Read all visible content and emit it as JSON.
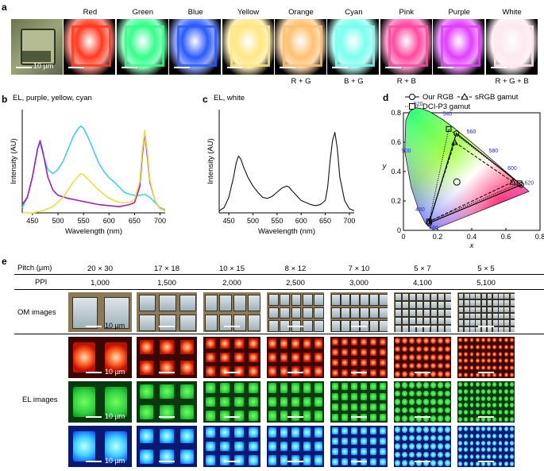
{
  "panel_a": {
    "label": "a",
    "scale_bar": "10 µm",
    "colors": [
      {
        "name": "",
        "combo": "",
        "hex": "#aab48a"
      },
      {
        "name": "Red",
        "combo": "",
        "hex": "#ff3a20"
      },
      {
        "name": "Green",
        "combo": "",
        "hex": "#35ff8a"
      },
      {
        "name": "Blue",
        "combo": "",
        "hex": "#2b5aff"
      },
      {
        "name": "Yellow",
        "combo": "",
        "hex": "#ffe680"
      },
      {
        "name": "Orange",
        "combo": "R + G",
        "hex": "#ffc070"
      },
      {
        "name": "Cyan",
        "combo": "B + G",
        "hex": "#7affee"
      },
      {
        "name": "Pink",
        "combo": "R + B",
        "hex": "#ff4aa0"
      },
      {
        "name": "Purple",
        "combo": "",
        "hex": "#e040ff"
      },
      {
        "name": "White",
        "combo": "R + G + B",
        "hex": "#ffe8f0"
      }
    ]
  },
  "panel_b": {
    "label": "b",
    "title": "EL, purple, yellow, cyan",
    "xlabel": "Wavelength (nm)",
    "ylabel": "Intensity (AU)",
    "xticks": [
      "450",
      "500",
      "550",
      "600",
      "650",
      "700"
    ]
  },
  "panel_c": {
    "label": "c",
    "title": "EL, white",
    "xlabel": "Wavelength (nm)",
    "ylabel": "Intensity (AU)",
    "xticks": [
      "450",
      "500",
      "550",
      "600",
      "650",
      "700"
    ]
  },
  "panel_d": {
    "label": "d",
    "legend": [
      "Our RGB",
      "sRGB gamut",
      "DCI-P3 gamut"
    ],
    "xlabel": "x",
    "ylabel": "y",
    "xticks": [
      "0",
      "0.2",
      "0.4",
      "0.6",
      "0.8"
    ],
    "yticks": [
      "0",
      "0.2",
      "0.4",
      "0.6",
      "0.8"
    ],
    "locus_labels": [
      "520",
      "540",
      "560",
      "580",
      "600",
      "620",
      "500",
      "480",
      "460"
    ]
  },
  "panel_e": {
    "label": "e",
    "pitch_header": "Pitch (µm)",
    "ppi_header": "PPI",
    "pitches": [
      "20 × 30",
      "17 × 18",
      "10 × 15",
      "8 × 12",
      "7 × 10",
      "5 × 7",
      "5 × 5"
    ],
    "ppis": [
      "1,000",
      "1,500",
      "2,000",
      "2,500",
      "3,000",
      "4,100",
      "5,100"
    ],
    "row_labels": [
      "OM images",
      "EL images"
    ],
    "scale_bar": "10 µm"
  },
  "chart_data": [
    {
      "type": "line",
      "title": "EL, purple, yellow, cyan",
      "xlabel": "Wavelength (nm)",
      "ylabel": "Intensity (AU)",
      "xlim": [
        430,
        710
      ],
      "series": [
        {
          "name": "",
          "color": "#3fd2e0",
          "x": [
            430,
            440,
            450,
            460,
            465,
            470,
            480,
            490,
            500,
            510,
            520,
            530,
            540,
            545,
            550,
            560,
            570,
            580,
            590,
            600,
            610,
            620,
            630,
            640,
            650,
            660,
            670,
            680,
            690,
            700,
            710
          ],
          "y": [
            0.05,
            0.15,
            0.35,
            0.62,
            0.68,
            0.58,
            0.42,
            0.38,
            0.42,
            0.5,
            0.62,
            0.74,
            0.82,
            0.84,
            0.82,
            0.72,
            0.6,
            0.48,
            0.4,
            0.34,
            0.3,
            0.25,
            0.2,
            0.18,
            0.17,
            0.17,
            0.18,
            0.15,
            0.1,
            0.05,
            0.03
          ]
        },
        {
          "name": "",
          "color": "#a020c0",
          "x": [
            430,
            440,
            450,
            460,
            465,
            470,
            480,
            490,
            500,
            520,
            540,
            560,
            580,
            600,
            620,
            640,
            650,
            660,
            665,
            670,
            675,
            680,
            690,
            700,
            710
          ],
          "y": [
            0.08,
            0.15,
            0.35,
            0.62,
            0.7,
            0.6,
            0.35,
            0.22,
            0.17,
            0.14,
            0.12,
            0.1,
            0.08,
            0.07,
            0.06,
            0.08,
            0.1,
            0.25,
            0.55,
            0.78,
            0.55,
            0.3,
            0.12,
            0.04,
            0.02
          ]
        },
        {
          "name": "",
          "color": "#ece040",
          "x": [
            430,
            450,
            470,
            490,
            510,
            530,
            545,
            550,
            560,
            580,
            600,
            620,
            640,
            650,
            660,
            665,
            670,
            675,
            680,
            690,
            700,
            710
          ],
          "y": [
            0.0,
            0.0,
            0.02,
            0.06,
            0.15,
            0.3,
            0.38,
            0.37,
            0.32,
            0.22,
            0.14,
            0.1,
            0.1,
            0.13,
            0.3,
            0.6,
            0.8,
            0.6,
            0.32,
            0.12,
            0.04,
            0.02
          ]
        }
      ]
    },
    {
      "type": "line",
      "title": "EL, white",
      "xlabel": "Wavelength (nm)",
      "ylabel": "Intensity (AU)",
      "xlim": [
        430,
        710
      ],
      "series": [
        {
          "name": "",
          "color": "#111111",
          "x": [
            430,
            440,
            450,
            460,
            465,
            470,
            475,
            480,
            490,
            500,
            510,
            520,
            530,
            540,
            550,
            560,
            570,
            575,
            580,
            590,
            600,
            610,
            620,
            630,
            640,
            650,
            655,
            660,
            665,
            670,
            675,
            680,
            690,
            700,
            710
          ],
          "y": [
            0.02,
            0.05,
            0.15,
            0.35,
            0.48,
            0.55,
            0.52,
            0.45,
            0.34,
            0.26,
            0.2,
            0.15,
            0.14,
            0.16,
            0.2,
            0.24,
            0.26,
            0.25,
            0.22,
            0.17,
            0.12,
            0.1,
            0.08,
            0.07,
            0.08,
            0.12,
            0.25,
            0.5,
            0.7,
            0.78,
            0.62,
            0.35,
            0.12,
            0.04,
            0.02
          ]
        }
      ]
    },
    {
      "type": "scatter",
      "title": "",
      "xlabel": "x",
      "ylabel": "y",
      "xlim": [
        0,
        0.8
      ],
      "ylim": [
        0,
        0.9
      ],
      "series": [
        {
          "name": "Our RGB",
          "x": [
            0.69,
            0.31,
            0.15,
            0.69
          ],
          "y": [
            0.31,
            0.66,
            0.05,
            0.31
          ]
        },
        {
          "name": "sRGB gamut",
          "x": [
            0.64,
            0.3,
            0.15,
            0.64
          ],
          "y": [
            0.33,
            0.6,
            0.06,
            0.33
          ]
        },
        {
          "name": "DCI-P3 gamut",
          "x": [
            0.68,
            0.265,
            0.15,
            0.68
          ],
          "y": [
            0.32,
            0.69,
            0.06,
            0.32
          ]
        }
      ],
      "white_point": {
        "x": 0.3127,
        "y": 0.329
      }
    }
  ]
}
